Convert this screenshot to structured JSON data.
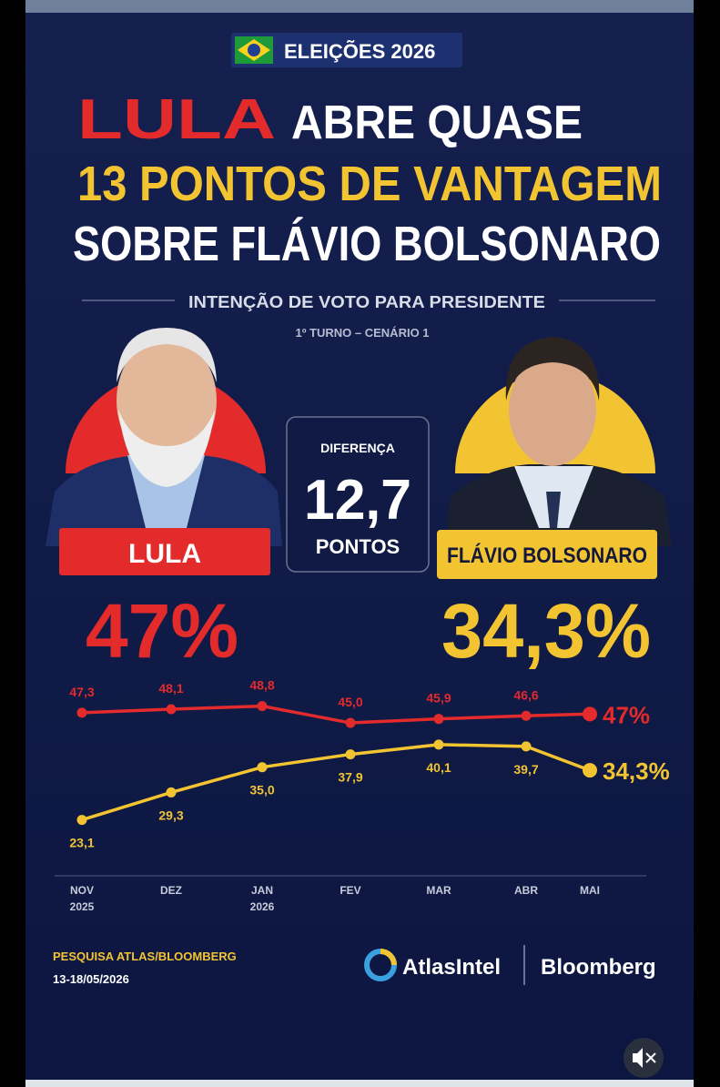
{
  "badge": "ELEIÇÕES 2026",
  "headline": {
    "line1_red": "LULA",
    "line1_white": "ABRE QUASE",
    "line2": "13 PONTOS DE VANTAGEM",
    "line3": "SOBRE FLÁVIO BOLSONARO"
  },
  "subtitle": "INTENÇÃO DE VOTO PARA PRESIDENTE",
  "scenario": "1º TURNO – CENÁRIO 1",
  "difference": {
    "label": "DIFERENÇA",
    "value": 12.7,
    "value_label": "12,7",
    "unit": "PONTOS"
  },
  "candidates": [
    {
      "name": "LULA",
      "value": 47,
      "value_label": "47%",
      "color": "#e32b2b"
    },
    {
      "name": "FLÁVIO BOLSONARO",
      "value": 34.3,
      "value_label": "34,3%",
      "color": "#f3c431"
    }
  ],
  "chart_data": {
    "type": "line",
    "categories": [
      "NOV 2025",
      "DEZ",
      "JAN 2026",
      "FEV",
      "MAR",
      "ABR",
      "MAI"
    ],
    "ylim": [
      15,
      52
    ],
    "series": [
      {
        "name": "LULA",
        "color": "#e32b2b",
        "values": [
          47.3,
          48.1,
          48.8,
          45.0,
          45.9,
          46.6,
          47
        ],
        "value_labels": [
          "47,3",
          "48,1",
          "48,8",
          "45,0",
          "45,9",
          "46,6",
          "47%"
        ]
      },
      {
        "name": "FLÁVIO BOLSONARO",
        "color": "#f3c431",
        "values": [
          23.1,
          29.3,
          35.0,
          37.9,
          40.1,
          39.7,
          34.3
        ],
        "value_labels": [
          "23,1",
          "29,3",
          "35,0",
          "37,9",
          "40,1",
          "39,7",
          "34,3%"
        ]
      }
    ]
  },
  "footer": {
    "source": "PESQUISA ATLAS/BLOOMBERG",
    "dates": "13-18/05/2026",
    "logo_atlas": "AtlasIntel",
    "logo_bloomberg": "Bloomberg"
  }
}
